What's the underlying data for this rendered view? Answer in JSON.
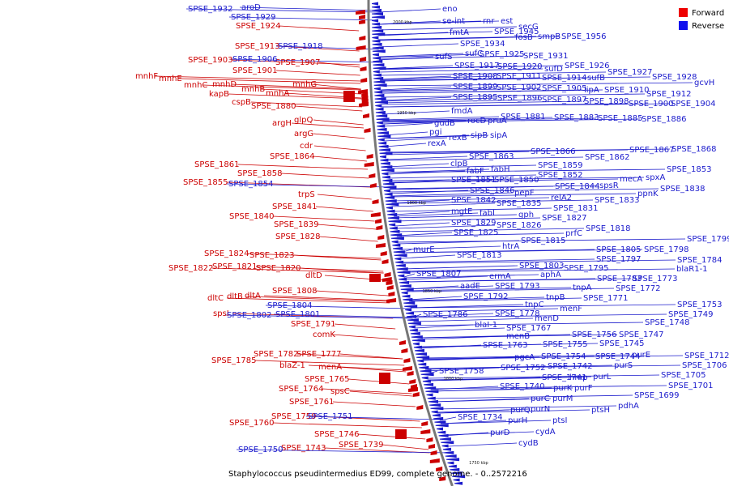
{
  "legend": [
    {
      "label": "Forward",
      "color": "#ee0000"
    },
    {
      "label": "Reverse",
      "color": "#1111ee"
    }
  ],
  "caption": "Staphylococcus pseudintermedius ED99, complete genome. - 0..2572216",
  "ticks": [
    "2000 kbp",
    "1950 kbp",
    "1900 kbp",
    "1850 kbp",
    "1800 kbp",
    "1750 kbp"
  ],
  "colors": {
    "forward": "#cc0000",
    "reverse": "#1a1acc",
    "backbone": "#777777"
  },
  "forward_labels": [
    "SPSE_1924",
    "SPSE_1913",
    "SPSE_1903",
    "SPSE_1907",
    "SPSE_1901",
    "mnhF",
    "mnhE",
    "mnhC",
    "mnhD",
    "mnhG",
    "mnhB",
    "mnhA",
    "kapB",
    "cspB",
    "SPSE_1880",
    "argH",
    "glpQ",
    "argG",
    "cdr",
    "SPSE_1864",
    "SPSE_1861",
    "SPSE_1858",
    "SPSE_1855",
    "trpS",
    "SPSE_1841",
    "SPSE_1840",
    "SPSE_1839",
    "SPSE_1828",
    "SPSE_1824",
    "SPSE_1823",
    "SPSE_1822",
    "SPSE_1821",
    "SPSE_1820",
    "dltD",
    "SPSE_1808",
    "dltC",
    "dltB",
    "dltA",
    "spsI",
    "SPSE_1791",
    "comK",
    "SPSE_1785",
    "SPSE_1782",
    "SPSE_1777",
    "blaZ-1",
    "menA",
    "SPSE_1765",
    "spsC",
    "SPSE_1764",
    "SPSE_1761",
    "SPSE_1760",
    "SPSE_1759",
    "SPSE_1746",
    "SPSE_1743",
    "SPSE_1739"
  ],
  "reverse_labels": [
    "SPSE_1932",
    "aroD",
    "SPSE_1929",
    "eno",
    "se-int",
    "rnr",
    "est",
    "secG",
    "fmtA",
    "SPSE_1945",
    "fosB",
    "smpB",
    "SPSE_1956",
    "SPSE_1918",
    "SPSE_1934",
    "SPSE_1906",
    "sufS",
    "sufC",
    "SPSE_1925",
    "SPSE_1931",
    "SPSE_1917",
    "SPSE_1920",
    "sufD",
    "SPSE_1926",
    "SPSE_1927",
    "SPSE_1928",
    "SPSE_1908",
    "SPSE_1911",
    "SPSE_1914",
    "sufB",
    "gcvH",
    "SPSE_1899",
    "SPSE_1902",
    "SPSE_1905",
    "lipA",
    "SPSE_1910",
    "SPSE_1912",
    "SPSE_1895",
    "SPSE_1896",
    "SPSE_1897",
    "SPSE_1898",
    "SPSE_1900",
    "SPSE_1904",
    "fmdA",
    "SPSE_1881",
    "SPSE_1883",
    "SPSE_1885",
    "SPSE_1886",
    "gudB",
    "rocD",
    "pruA",
    "pgi",
    "rexB",
    "sipB",
    "sipA",
    "rexA",
    "SPSE_1866",
    "SPSE_1867",
    "SPSE_1868",
    "SPSE_1863",
    "SPSE_1862",
    "clpB",
    "fabF",
    "fabH",
    "SPSE_1859",
    "SPSE_1853",
    "SPSE_1854",
    "SPSE_1851",
    "SPSE_1850",
    "SPSE_1852",
    "mecA",
    "spxA",
    "SPSE_1846",
    "pepF",
    "SPSE_1844",
    "spsR",
    "SPSE_1838",
    "SPSE_1842",
    "SPSE_1835",
    "relA2",
    "ppnK",
    "SPSE_1833",
    "mgtE",
    "fabI",
    "gph",
    "SPSE_1831",
    "SPSE_1829",
    "SPSE_1826",
    "SPSE_1827",
    "SPSE_1825",
    "prfC",
    "SPSE_1818",
    "SPSE_1815",
    "SPSE_1799",
    "murE",
    "htrA",
    "SPSE_1805",
    "SPSE_1798",
    "SPSE_1813",
    "SPSE_1797",
    "SPSE_1784",
    "SPSE_1803",
    "SPSE_1795",
    "blaR1-1",
    "SPSE_1807",
    "ermA",
    "aphA",
    "SPSE_1783",
    "SPSE_1773",
    "aadE",
    "SPSE_1793",
    "tnpA",
    "SPSE_1772",
    "SPSE_1792",
    "tnpB",
    "SPSE_1771",
    "SPSE_1804",
    "tnpC",
    "SPSE_1753",
    "SPSE_1802",
    "SPSE_1801",
    "SPSE_1786",
    "SPSE_1778",
    "menF",
    "SPSE_1749",
    "menD",
    "SPSE_1748",
    "blaI-1",
    "SPSE_1767",
    "SPSE_1756",
    "SPSE_1747",
    "menB",
    "SPSE_1755",
    "SPSE_1745",
    "SPSE_1763",
    "pgcA",
    "SPSE_1754",
    "SPSE_1744",
    "purE",
    "SPSE_1712",
    "SPSE_1742",
    "purS",
    "SPSE_1706",
    "SPSE_1758",
    "SPSE_1752",
    "SPSE_1741",
    "hmp",
    "purL",
    "SPSE_1705",
    "SPSE_1740",
    "purK",
    "purF",
    "SPSE_1701",
    "purC",
    "purM",
    "SPSE_1699",
    "purQ",
    "purN",
    "ptsH",
    "pdhA",
    "SPSE_1734",
    "purH",
    "ptsI",
    "SPSE_1751",
    "purD",
    "cydA",
    "SPSE_1750",
    "cydB"
  ]
}
